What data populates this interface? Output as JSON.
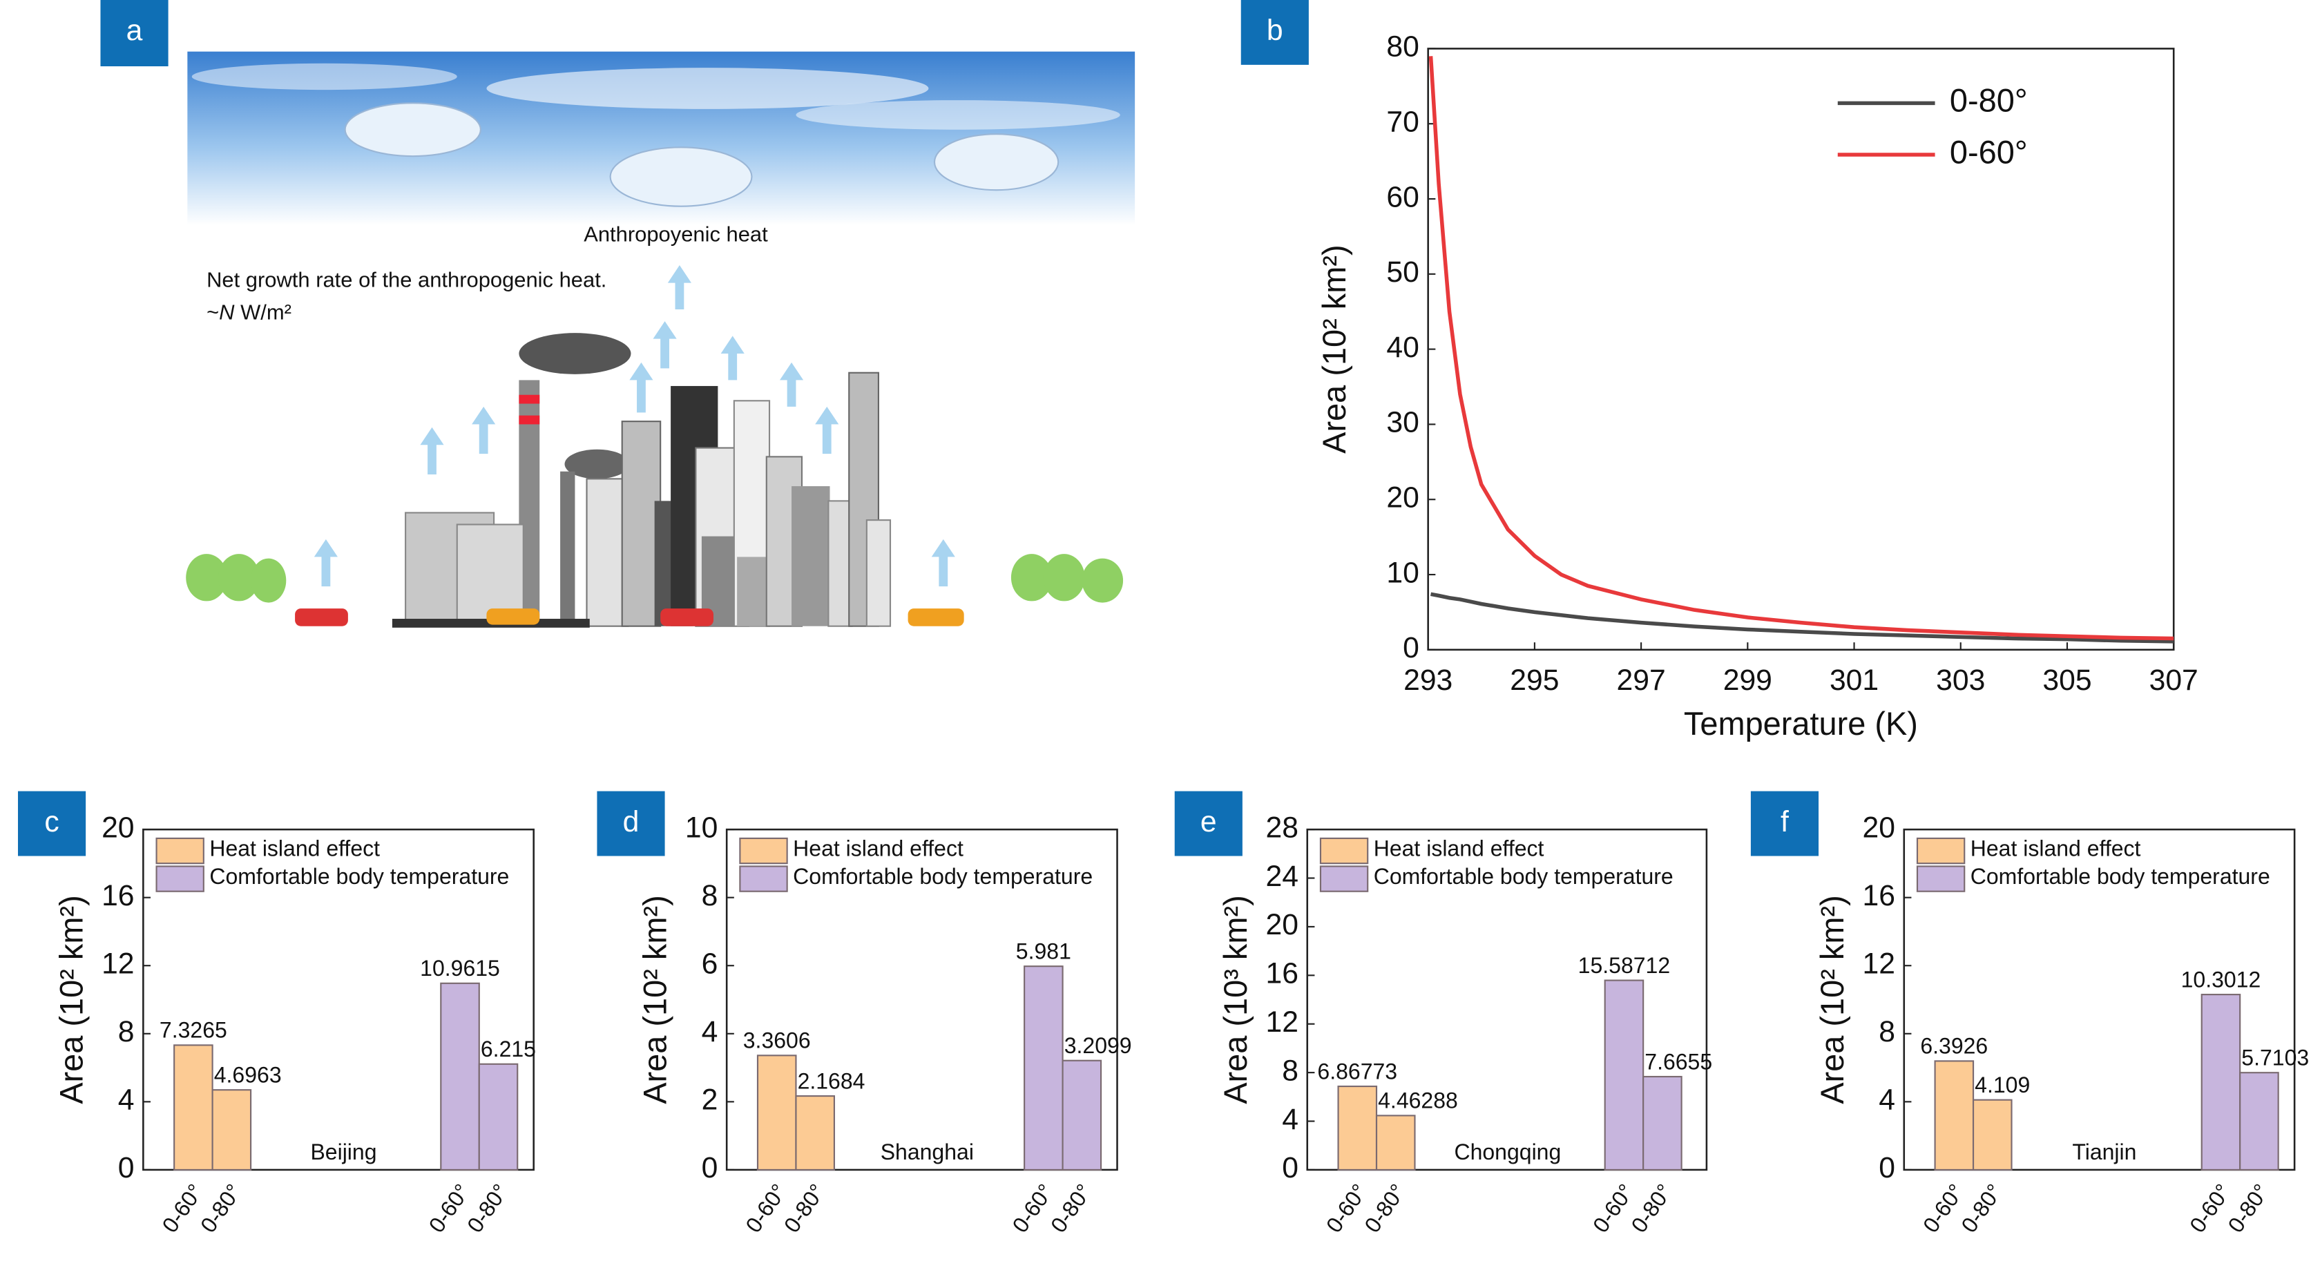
{
  "illustration": {
    "label": "a",
    "heat_label": "Anthropoyenic heat",
    "growth_label": "Net growth rate of the anthropogenic heat.",
    "flux_prefix": "~",
    "flux_symbol": "N",
    "flux_unit": "W/m²"
  },
  "chart_data": [
    {
      "type": "line",
      "label": "b",
      "xlabel": "Temperature (K)",
      "ylabel": "Area (10² km²)",
      "xlim": [
        293,
        307
      ],
      "xticks": [
        293,
        295,
        297,
        299,
        301,
        303,
        305,
        307
      ],
      "ylim": [
        0,
        80
      ],
      "yticks": [
        0,
        10,
        20,
        30,
        40,
        50,
        60,
        70,
        80
      ],
      "legend": "upper right",
      "x": [
        293.05,
        293.2,
        293.4,
        293.6,
        293.8,
        294,
        294.5,
        295,
        295.5,
        296,
        297,
        298,
        299,
        300,
        301,
        302,
        303,
        304,
        305,
        306,
        307
      ],
      "series": [
        {
          "name": "0-80°",
          "color": "#4a4a4a",
          "values": [
            7.4,
            7.2,
            6.9,
            6.7,
            6.4,
            6.1,
            5.5,
            5.0,
            4.6,
            4.2,
            3.6,
            3.1,
            2.7,
            2.4,
            2.1,
            1.9,
            1.7,
            1.5,
            1.4,
            1.2,
            1.1
          ]
        },
        {
          "name": "0-60°",
          "color": "#e8393b",
          "values": [
            79,
            62,
            45,
            34,
            27,
            22,
            16,
            12.5,
            10,
            8.5,
            6.7,
            5.3,
            4.3,
            3.6,
            3.0,
            2.6,
            2.3,
            2.0,
            1.8,
            1.6,
            1.5
          ]
        }
      ]
    },
    {
      "type": "bar",
      "label": "c",
      "annotation": "Beijing",
      "ylabel": "Area (10² km²)",
      "ylim": [
        0,
        20
      ],
      "yticks": [
        0,
        4,
        8,
        12,
        16,
        20
      ],
      "categories": [
        "0-60°",
        "0-80°"
      ],
      "series": [
        {
          "name": "Heat island effect",
          "color": "#fccb94",
          "values": [
            7.3265,
            4.6963
          ]
        },
        {
          "name": "Comfortable body temperature",
          "color": "#c7b5dd",
          "values": [
            10.9615,
            6.215
          ]
        }
      ]
    },
    {
      "type": "bar",
      "label": "d",
      "annotation": "Shanghai",
      "ylabel": "Area (10² km²)",
      "ylim": [
        0,
        10
      ],
      "yticks": [
        0,
        2,
        4,
        6,
        8,
        10
      ],
      "categories": [
        "0-60°",
        "0-80°"
      ],
      "series": [
        {
          "name": "Heat island effect",
          "color": "#fccb94",
          "values": [
            3.3606,
            2.1684
          ]
        },
        {
          "name": "Comfortable body temperature",
          "color": "#c7b5dd",
          "values": [
            5.981,
            3.2099
          ]
        }
      ]
    },
    {
      "type": "bar",
      "label": "e",
      "annotation": "Chongqing",
      "ylabel": "Area (10³ km²)",
      "ylim": [
        0,
        28
      ],
      "yticks": [
        0,
        4,
        8,
        12,
        16,
        20,
        24,
        28
      ],
      "categories": [
        "0-60°",
        "0-80°"
      ],
      "series": [
        {
          "name": "Heat island effect",
          "color": "#fccb94",
          "values": [
            6.86773,
            4.46288
          ]
        },
        {
          "name": "Comfortable body temperature",
          "color": "#c7b5dd",
          "values": [
            15.58712,
            7.6655
          ]
        }
      ]
    },
    {
      "type": "bar",
      "label": "f",
      "annotation": "Tianjin",
      "ylabel": "Area (10² km²)",
      "ylim": [
        0,
        20
      ],
      "yticks": [
        0,
        4,
        8,
        12,
        16,
        20
      ],
      "categories": [
        "0-60°",
        "0-80°"
      ],
      "series": [
        {
          "name": "Heat island effect",
          "color": "#fccb94",
          "values": [
            6.3926,
            4.109
          ]
        },
        {
          "name": "Comfortable body temperature",
          "color": "#c7b5dd",
          "values": [
            10.3012,
            5.7103
          ]
        }
      ]
    }
  ]
}
